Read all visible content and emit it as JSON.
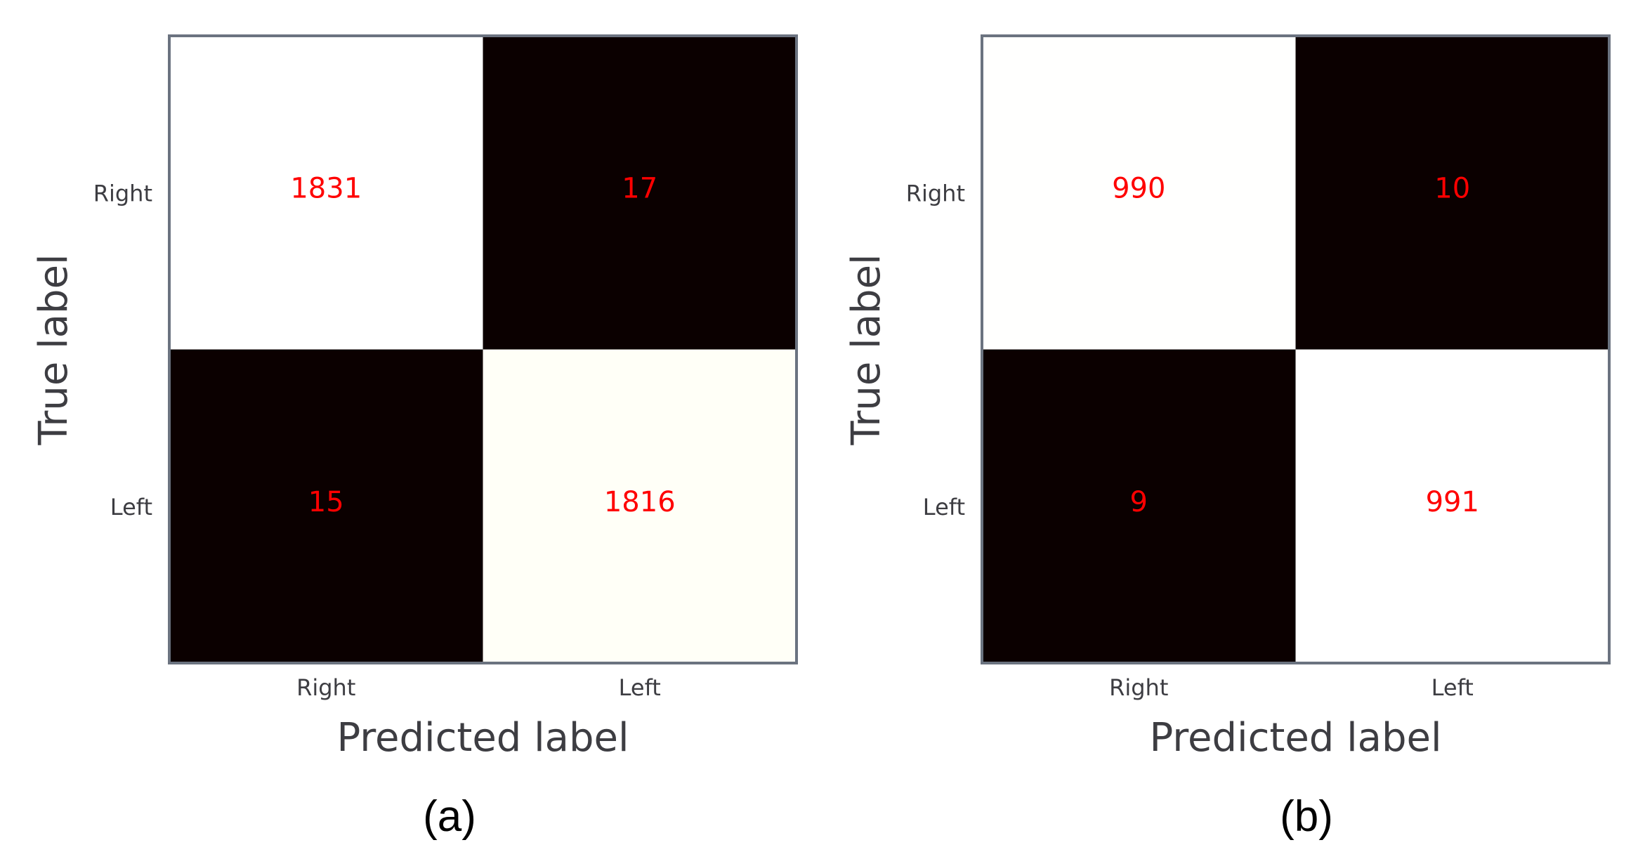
{
  "chart_data": [
    {
      "type": "heatmap",
      "panel_label": "(a)",
      "xlabel": "Predicted label",
      "ylabel": "True label",
      "x_categories": [
        "Right",
        "Left"
      ],
      "y_categories": [
        "Right",
        "Left"
      ],
      "matrix": [
        [
          1831,
          17
        ],
        [
          15,
          1816
        ]
      ],
      "colormap": "hot",
      "value_color": "#ff0000",
      "grid": false
    },
    {
      "type": "heatmap",
      "panel_label": "(b)",
      "xlabel": "Predicted label",
      "ylabel": "True label",
      "x_categories": [
        "Right",
        "Left"
      ],
      "y_categories": [
        "Right",
        "Left"
      ],
      "matrix": [
        [
          990,
          10
        ],
        [
          9,
          991
        ]
      ],
      "colormap": "hot",
      "value_color": "#ff0000",
      "grid": false
    }
  ],
  "colors": {
    "frame": "#6b7380",
    "text": "#3d3d42",
    "cell_low": "#0b0000",
    "cell_high": "#ffffff"
  }
}
